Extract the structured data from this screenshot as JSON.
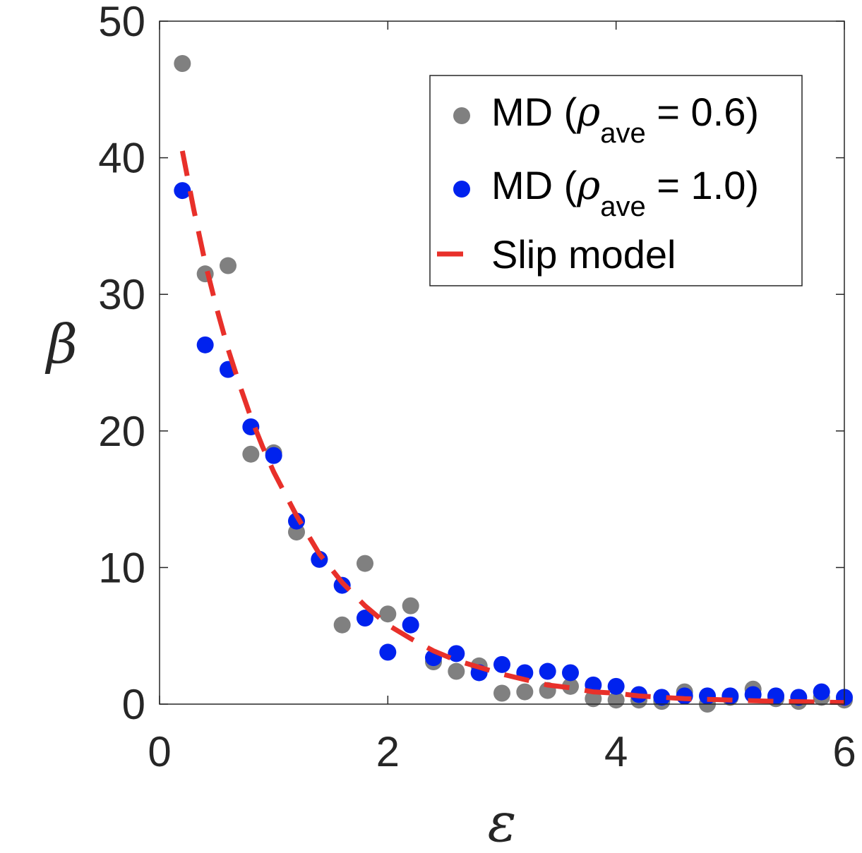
{
  "chart_data": {
    "type": "scatter",
    "xlabel": "ε",
    "ylabel": "β",
    "xlim": [
      0,
      6
    ],
    "ylim": [
      0,
      50
    ],
    "xticks": [
      0,
      2,
      4,
      6
    ],
    "yticks": [
      0,
      10,
      20,
      30,
      40,
      50
    ],
    "grid": false,
    "legend_position": "top-right",
    "series": [
      {
        "name": "MD (ρave = 0.6)",
        "legend": {
          "prefix": "MD (",
          "greek": "ρ",
          "sub": "ave",
          "suffix": " = 0.6)"
        },
        "kind": "scatter",
        "color": "#808080",
        "points": [
          [
            0.2,
            46.9
          ],
          [
            0.4,
            31.5
          ],
          [
            0.6,
            32.1
          ],
          [
            0.8,
            18.3
          ],
          [
            1.0,
            18.4
          ],
          [
            1.2,
            12.6
          ],
          [
            1.4,
            10.6
          ],
          [
            1.6,
            5.8
          ],
          [
            1.8,
            10.3
          ],
          [
            2.0,
            6.6
          ],
          [
            2.2,
            7.2
          ],
          [
            2.4,
            3.1
          ],
          [
            2.6,
            2.4
          ],
          [
            2.8,
            2.8
          ],
          [
            3.0,
            0.8
          ],
          [
            3.2,
            0.9
          ],
          [
            3.4,
            1.0
          ],
          [
            3.6,
            1.3
          ],
          [
            3.8,
            0.4
          ],
          [
            4.0,
            0.3
          ],
          [
            4.2,
            0.3
          ],
          [
            4.4,
            0.2
          ],
          [
            4.6,
            0.9
          ],
          [
            4.8,
            0.0
          ],
          [
            5.0,
            0.5
          ],
          [
            5.2,
            1.1
          ],
          [
            5.4,
            0.4
          ],
          [
            5.6,
            0.2
          ],
          [
            5.8,
            0.5
          ],
          [
            6.0,
            0.3
          ]
        ]
      },
      {
        "name": "MD (ρave = 1.0)",
        "legend": {
          "prefix": "MD (",
          "greek": "ρ",
          "sub": "ave",
          "suffix": " = 1.0)"
        },
        "kind": "scatter",
        "color": "#0022ee",
        "points": [
          [
            0.2,
            37.6
          ],
          [
            0.4,
            26.3
          ],
          [
            0.6,
            24.5
          ],
          [
            0.8,
            20.3
          ],
          [
            1.0,
            18.2
          ],
          [
            1.2,
            13.4
          ],
          [
            1.4,
            10.6
          ],
          [
            1.6,
            8.7
          ],
          [
            1.8,
            6.3
          ],
          [
            2.0,
            3.8
          ],
          [
            2.2,
            5.8
          ],
          [
            2.4,
            3.4
          ],
          [
            2.6,
            3.7
          ],
          [
            2.8,
            2.3
          ],
          [
            3.0,
            2.9
          ],
          [
            3.2,
            2.3
          ],
          [
            3.4,
            2.4
          ],
          [
            3.6,
            2.3
          ],
          [
            3.8,
            1.4
          ],
          [
            4.0,
            1.3
          ],
          [
            4.2,
            0.7
          ],
          [
            4.4,
            0.5
          ],
          [
            4.6,
            0.6
          ],
          [
            4.8,
            0.6
          ],
          [
            5.0,
            0.6
          ],
          [
            5.2,
            0.7
          ],
          [
            5.4,
            0.6
          ],
          [
            5.6,
            0.5
          ],
          [
            5.8,
            0.9
          ],
          [
            6.0,
            0.5
          ]
        ]
      },
      {
        "name": "Slip model",
        "legend": {
          "prefix": "Slip model",
          "greek": "",
          "sub": "",
          "suffix": ""
        },
        "kind": "dashed-line",
        "color": "#e8302a",
        "points": [
          [
            0.2,
            40.5
          ],
          [
            0.3,
            36.2
          ],
          [
            0.4,
            32.3
          ],
          [
            0.5,
            29.0
          ],
          [
            0.6,
            26.0
          ],
          [
            0.7,
            23.4
          ],
          [
            0.8,
            21.0
          ],
          [
            0.9,
            18.9
          ],
          [
            1.0,
            17.0
          ],
          [
            1.2,
            13.8
          ],
          [
            1.4,
            11.0
          ],
          [
            1.6,
            8.9
          ],
          [
            1.8,
            7.2
          ],
          [
            2.0,
            5.8
          ],
          [
            2.2,
            4.8
          ],
          [
            2.4,
            3.9
          ],
          [
            2.6,
            3.2
          ],
          [
            2.8,
            2.7
          ],
          [
            3.0,
            2.2
          ],
          [
            3.2,
            1.8
          ],
          [
            3.4,
            1.4
          ],
          [
            3.6,
            1.2
          ],
          [
            3.8,
            0.9
          ],
          [
            4.0,
            0.8
          ],
          [
            4.2,
            0.6
          ],
          [
            4.4,
            0.5
          ],
          [
            4.6,
            0.4
          ],
          [
            4.8,
            0.35
          ],
          [
            5.0,
            0.3
          ],
          [
            5.4,
            0.2
          ],
          [
            5.8,
            0.15
          ],
          [
            6.0,
            0.12
          ]
        ]
      }
    ]
  }
}
